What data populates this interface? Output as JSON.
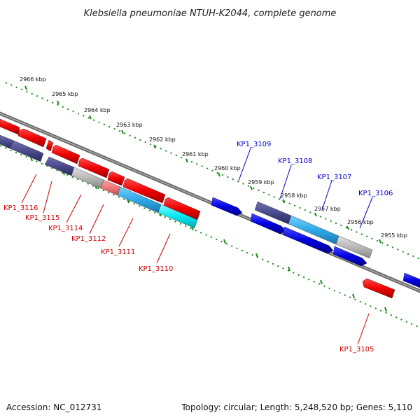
{
  "title": "Klebsiella pneumoniae NTUH-K2044, complete genome",
  "footer": {
    "accession": "Accession: NC_012731",
    "summary": "Topology: circular; Length: 5,248,520 bp; Genes: 5,110"
  },
  "scale": {
    "ticks": [
      "2966 kbp",
      "2965 kbp",
      "2964 kbp",
      "2963 kbp",
      "2962 kbp",
      "2961 kbp",
      "2960 kbp",
      "2959 kbp",
      "2958 kbp",
      "2957 kbp",
      "2956 kbp",
      "2955 kbp"
    ]
  },
  "genes": {
    "forward": [
      "KP1_3109",
      "KP1_3108",
      "KP1_3107",
      "KP1_3106"
    ],
    "reverse": [
      "KP1_3116",
      "KP1_3115",
      "KP1_3114",
      "KP1_3112",
      "KP1_3111",
      "KP1_3110",
      "KP1_3105"
    ]
  },
  "colors": {
    "forward_gene": "#0000e0",
    "reverse_gene": "#ee0000",
    "backbone": "#808080",
    "scale_dots": "#1a8a1a",
    "forward_label": "#0000cc",
    "reverse_label": "#cc0000"
  }
}
